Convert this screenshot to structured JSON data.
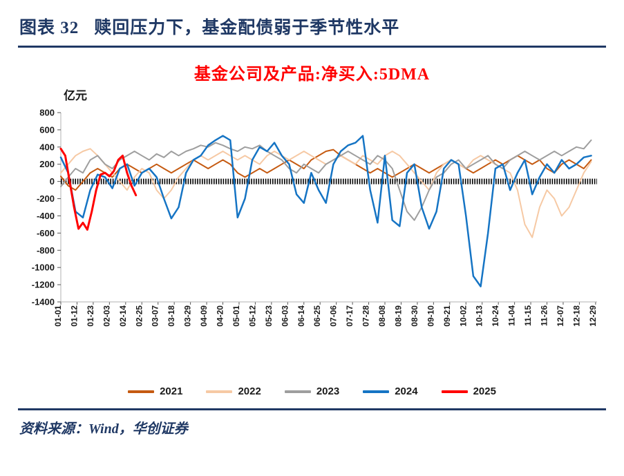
{
  "header": {
    "figure_label": "图表 32",
    "title": "赎回压力下，基金配债弱于季节性水平"
  },
  "footer": {
    "source": "资料来源：Wind，华创证券"
  },
  "chart_data": {
    "type": "line",
    "title": "基金公司及产品:净买入:5DMA",
    "unit_label": "亿元",
    "ylim": [
      -1400,
      800
    ],
    "yticks": [
      800,
      600,
      400,
      200,
      0,
      -200,
      -400,
      -600,
      -800,
      -1000,
      -1200,
      -1400
    ],
    "x_domain_days": [
      1,
      365
    ],
    "x_labels": [
      "01-01",
      "01-12",
      "01-23",
      "02-03",
      "02-14",
      "02-25",
      "03-07",
      "03-18",
      "03-29",
      "04-09",
      "04-20",
      "05-01",
      "05-12",
      "05-23",
      "06-03",
      "06-14",
      "06-25",
      "07-06",
      "07-17",
      "07-28",
      "08-08",
      "08-19",
      "08-30",
      "09-10",
      "09-21",
      "10-02",
      "10-13",
      "10-24",
      "11-04",
      "11-15",
      "11-26",
      "12-07",
      "12-18",
      "12-29"
    ],
    "x_label_day_step": 11,
    "zero_line": true,
    "grid": false,
    "legend_position": "bottom",
    "series": [
      {
        "name": "2021",
        "color": "#C55A11",
        "width": 2,
        "points": [
          [
            1,
            60
          ],
          [
            6,
            -50
          ],
          [
            11,
            -100
          ],
          [
            16,
            0
          ],
          [
            21,
            100
          ],
          [
            26,
            150
          ],
          [
            31,
            100
          ],
          [
            36,
            50
          ],
          [
            41,
            150
          ],
          [
            46,
            200
          ],
          [
            51,
            150
          ],
          [
            56,
            100
          ],
          [
            61,
            150
          ],
          [
            66,
            200
          ],
          [
            71,
            150
          ],
          [
            76,
            100
          ],
          [
            81,
            150
          ],
          [
            86,
            200
          ],
          [
            91,
            250
          ],
          [
            96,
            200
          ],
          [
            101,
            150
          ],
          [
            106,
            200
          ],
          [
            111,
            250
          ],
          [
            116,
            200
          ],
          [
            121,
            100
          ],
          [
            126,
            50
          ],
          [
            131,
            100
          ],
          [
            136,
            150
          ],
          [
            141,
            100
          ],
          [
            146,
            150
          ],
          [
            151,
            200
          ],
          [
            156,
            250
          ],
          [
            161,
            200
          ],
          [
            166,
            150
          ],
          [
            171,
            250
          ],
          [
            176,
            300
          ],
          [
            181,
            350
          ],
          [
            186,
            370
          ],
          [
            191,
            300
          ],
          [
            196,
            250
          ],
          [
            201,
            200
          ],
          [
            206,
            150
          ],
          [
            211,
            100
          ],
          [
            216,
            150
          ],
          [
            221,
            100
          ],
          [
            226,
            50
          ],
          [
            231,
            100
          ],
          [
            236,
            150
          ],
          [
            241,
            200
          ],
          [
            246,
            150
          ],
          [
            251,
            100
          ],
          [
            256,
            150
          ],
          [
            261,
            200
          ],
          [
            266,
            250
          ],
          [
            271,
            200
          ],
          [
            276,
            150
          ],
          [
            281,
            100
          ],
          [
            286,
            150
          ],
          [
            291,
            200
          ],
          [
            296,
            250
          ],
          [
            301,
            200
          ],
          [
            306,
            250
          ],
          [
            311,
            300
          ],
          [
            316,
            250
          ],
          [
            321,
            200
          ],
          [
            326,
            250
          ],
          [
            331,
            150
          ],
          [
            336,
            100
          ],
          [
            341,
            200
          ],
          [
            346,
            250
          ],
          [
            351,
            200
          ],
          [
            356,
            150
          ],
          [
            361,
            250
          ]
        ]
      },
      {
        "name": "2022",
        "color": "#F6C9A4",
        "width": 2,
        "points": [
          [
            1,
            100
          ],
          [
            6,
            200
          ],
          [
            11,
            300
          ],
          [
            16,
            350
          ],
          [
            21,
            380
          ],
          [
            26,
            300
          ],
          [
            31,
            200
          ],
          [
            36,
            100
          ],
          [
            41,
            0
          ],
          [
            46,
            -100
          ],
          [
            51,
            50
          ],
          [
            56,
            150
          ],
          [
            61,
            100
          ],
          [
            66,
            -100
          ],
          [
            71,
            -200
          ],
          [
            76,
            -100
          ],
          [
            81,
            50
          ],
          [
            86,
            150
          ],
          [
            91,
            250
          ],
          [
            96,
            300
          ],
          [
            101,
            250
          ],
          [
            106,
            300
          ],
          [
            111,
            350
          ],
          [
            116,
            300
          ],
          [
            121,
            250
          ],
          [
            126,
            300
          ],
          [
            131,
            250
          ],
          [
            136,
            200
          ],
          [
            141,
            300
          ],
          [
            146,
            350
          ],
          [
            151,
            300
          ],
          [
            156,
            250
          ],
          [
            161,
            300
          ],
          [
            166,
            350
          ],
          [
            171,
            300
          ],
          [
            176,
            250
          ],
          [
            181,
            200
          ],
          [
            186,
            250
          ],
          [
            191,
            300
          ],
          [
            196,
            250
          ],
          [
            201,
            200
          ],
          [
            206,
            300
          ],
          [
            211,
            250
          ],
          [
            216,
            200
          ],
          [
            221,
            300
          ],
          [
            226,
            350
          ],
          [
            231,
            300
          ],
          [
            236,
            200
          ],
          [
            241,
            100
          ],
          [
            246,
            0
          ],
          [
            251,
            -100
          ],
          [
            256,
            100
          ],
          [
            261,
            200
          ],
          [
            266,
            250
          ],
          [
            271,
            200
          ],
          [
            276,
            150
          ],
          [
            281,
            250
          ],
          [
            286,
            300
          ],
          [
            291,
            250
          ],
          [
            296,
            200
          ],
          [
            301,
            150
          ],
          [
            306,
            100
          ],
          [
            311,
            -100
          ],
          [
            316,
            -500
          ],
          [
            321,
            -650
          ],
          [
            326,
            -300
          ],
          [
            331,
            -100
          ],
          [
            336,
            -200
          ],
          [
            341,
            -400
          ],
          [
            346,
            -300
          ],
          [
            351,
            -100
          ],
          [
            356,
            100
          ],
          [
            361,
            230
          ]
        ]
      },
      {
        "name": "2023",
        "color": "#9E9E9E",
        "width": 2,
        "points": [
          [
            1,
            -60
          ],
          [
            6,
            50
          ],
          [
            11,
            150
          ],
          [
            16,
            100
          ],
          [
            21,
            250
          ],
          [
            26,
            300
          ],
          [
            31,
            200
          ],
          [
            36,
            150
          ],
          [
            41,
            250
          ],
          [
            46,
            300
          ],
          [
            51,
            350
          ],
          [
            56,
            300
          ],
          [
            61,
            250
          ],
          [
            66,
            320
          ],
          [
            71,
            280
          ],
          [
            76,
            350
          ],
          [
            81,
            300
          ],
          [
            86,
            350
          ],
          [
            91,
            380
          ],
          [
            96,
            420
          ],
          [
            101,
            400
          ],
          [
            106,
            450
          ],
          [
            111,
            420
          ],
          [
            116,
            380
          ],
          [
            121,
            350
          ],
          [
            126,
            400
          ],
          [
            131,
            380
          ],
          [
            136,
            420
          ],
          [
            141,
            350
          ],
          [
            146,
            300
          ],
          [
            151,
            250
          ],
          [
            156,
            150
          ],
          [
            161,
            100
          ],
          [
            166,
            200
          ],
          [
            171,
            150
          ],
          [
            176,
            100
          ],
          [
            181,
            200
          ],
          [
            186,
            250
          ],
          [
            191,
            300
          ],
          [
            196,
            350
          ],
          [
            201,
            300
          ],
          [
            206,
            250
          ],
          [
            211,
            200
          ],
          [
            216,
            300
          ],
          [
            221,
            250
          ],
          [
            226,
            150
          ],
          [
            231,
            -100
          ],
          [
            236,
            -350
          ],
          [
            241,
            -450
          ],
          [
            246,
            -300
          ],
          [
            251,
            -100
          ],
          [
            256,
            50
          ],
          [
            261,
            100
          ],
          [
            266,
            200
          ],
          [
            271,
            250
          ],
          [
            276,
            150
          ],
          [
            281,
            200
          ],
          [
            286,
            250
          ],
          [
            291,
            300
          ],
          [
            296,
            200
          ],
          [
            301,
            150
          ],
          [
            306,
            250
          ],
          [
            311,
            300
          ],
          [
            316,
            350
          ],
          [
            321,
            300
          ],
          [
            326,
            250
          ],
          [
            331,
            300
          ],
          [
            336,
            350
          ],
          [
            341,
            300
          ],
          [
            346,
            350
          ],
          [
            351,
            400
          ],
          [
            356,
            380
          ],
          [
            361,
            480
          ]
        ]
      },
      {
        "name": "2024",
        "color": "#1574C4",
        "width": 2.5,
        "points": [
          [
            1,
            280
          ],
          [
            6,
            100
          ],
          [
            11,
            -350
          ],
          [
            16,
            -420
          ],
          [
            21,
            -100
          ],
          [
            26,
            80
          ],
          [
            31,
            50
          ],
          [
            36,
            -80
          ],
          [
            41,
            150
          ],
          [
            46,
            200
          ],
          [
            51,
            -50
          ],
          [
            56,
            100
          ],
          [
            61,
            150
          ],
          [
            66,
            50
          ],
          [
            71,
            -200
          ],
          [
            76,
            -430
          ],
          [
            81,
            -300
          ],
          [
            86,
            100
          ],
          [
            91,
            250
          ],
          [
            96,
            300
          ],
          [
            101,
            420
          ],
          [
            106,
            480
          ],
          [
            111,
            530
          ],
          [
            116,
            480
          ],
          [
            121,
            -420
          ],
          [
            126,
            -200
          ],
          [
            131,
            250
          ],
          [
            136,
            400
          ],
          [
            141,
            350
          ],
          [
            146,
            450
          ],
          [
            151,
            300
          ],
          [
            156,
            200
          ],
          [
            161,
            -150
          ],
          [
            166,
            -250
          ],
          [
            171,
            100
          ],
          [
            176,
            -100
          ],
          [
            181,
            -250
          ],
          [
            186,
            200
          ],
          [
            191,
            350
          ],
          [
            196,
            420
          ],
          [
            201,
            450
          ],
          [
            206,
            530
          ],
          [
            211,
            -100
          ],
          [
            216,
            -480
          ],
          [
            221,
            300
          ],
          [
            226,
            -450
          ],
          [
            231,
            -520
          ],
          [
            236,
            100
          ],
          [
            241,
            200
          ],
          [
            246,
            -300
          ],
          [
            251,
            -550
          ],
          [
            256,
            -350
          ],
          [
            261,
            150
          ],
          [
            266,
            250
          ],
          [
            271,
            200
          ],
          [
            276,
            -400
          ],
          [
            281,
            -1100
          ],
          [
            286,
            -1220
          ],
          [
            291,
            -600
          ],
          [
            296,
            150
          ],
          [
            301,
            200
          ],
          [
            306,
            -100
          ],
          [
            311,
            100
          ],
          [
            316,
            250
          ],
          [
            321,
            -150
          ],
          [
            326,
            50
          ],
          [
            331,
            200
          ],
          [
            336,
            100
          ],
          [
            341,
            250
          ],
          [
            346,
            150
          ],
          [
            351,
            200
          ],
          [
            356,
            280
          ],
          [
            361,
            300
          ]
        ]
      },
      {
        "name": "2025",
        "color": "#FF0000",
        "width": 3,
        "points": [
          [
            1,
            380
          ],
          [
            4,
            300
          ],
          [
            7,
            0
          ],
          [
            10,
            -300
          ],
          [
            13,
            -550
          ],
          [
            16,
            -480
          ],
          [
            19,
            -560
          ],
          [
            22,
            -350
          ],
          [
            25,
            -100
          ],
          [
            28,
            80
          ],
          [
            31,
            100
          ],
          [
            34,
            60
          ],
          [
            37,
            120
          ],
          [
            40,
            250
          ],
          [
            43,
            300
          ],
          [
            46,
            100
          ],
          [
            49,
            -50
          ],
          [
            52,
            -160
          ]
        ]
      }
    ]
  }
}
